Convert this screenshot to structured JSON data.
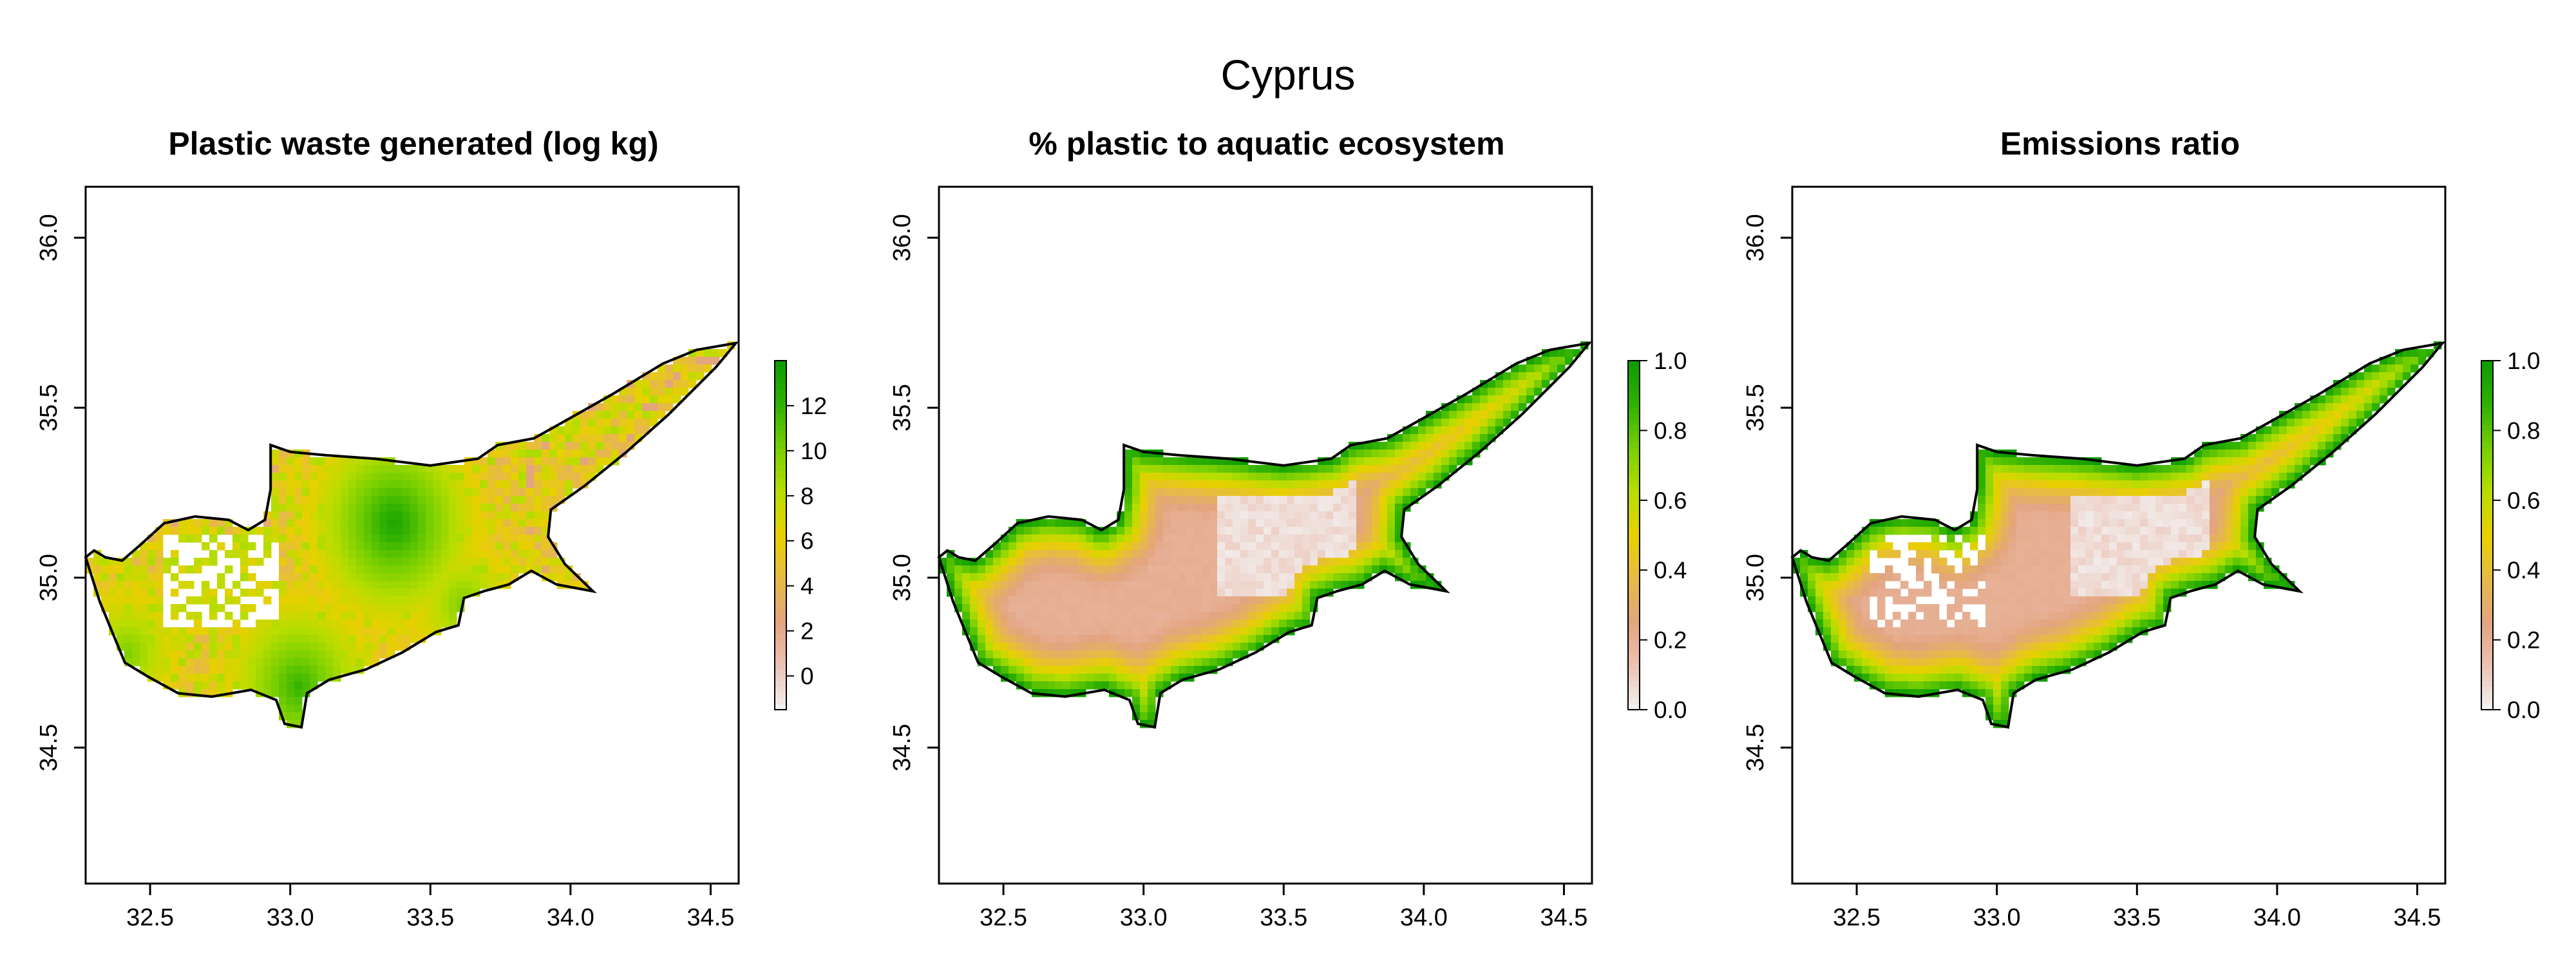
{
  "figure_title": "Cyprus",
  "colors": {
    "ramp": [
      "#f2f2f2",
      "#ecc2b4",
      "#e3a480",
      "#e6ba46",
      "#e8d000",
      "#b7dd00",
      "#77cf00",
      "#2fb100",
      "#0c9a00"
    ],
    "coastline": "#000000",
    "no_data": "#ffffff"
  },
  "chart_data": [
    {
      "type": "heatmap",
      "title": "Plastic waste generated (log kg)",
      "xlabel": "",
      "ylabel": "",
      "xlim": [
        32.27,
        34.6
      ],
      "ylim": [
        34.1,
        36.15
      ],
      "x_ticks": [
        "32.5",
        "33.0",
        "33.5",
        "34.0",
        "34.5"
      ],
      "y_ticks": [
        "34.5",
        "35.0",
        "35.5",
        "36.0"
      ],
      "legend": {
        "placement": "right",
        "min": -1.5,
        "max": 14,
        "ticks": [
          "0",
          "2",
          "4",
          "6",
          "8",
          "10",
          "12"
        ]
      },
      "pattern": "speckled",
      "typical_value": 6,
      "hotspots": [
        {
          "label": "",
          "lon": 33.37,
          "lat": 35.16,
          "value": 13
        },
        {
          "label": "",
          "lon": 33.03,
          "lat": 34.68,
          "value": 12
        },
        {
          "label": "",
          "lon": 33.62,
          "lat": 34.92,
          "value": 10
        },
        {
          "label": "",
          "lon": 32.42,
          "lat": 34.78,
          "value": 10
        }
      ],
      "no_data_region": {
        "lon": [
          32.55,
          32.95
        ],
        "lat": [
          34.85,
          35.12
        ]
      }
    },
    {
      "type": "heatmap",
      "title": "% plastic to aquatic ecosystem",
      "xlabel": "",
      "ylabel": "",
      "xlim": [
        32.27,
        34.6
      ],
      "ylim": [
        34.1,
        36.15
      ],
      "x_ticks": [
        "32.5",
        "33.0",
        "33.5",
        "34.0",
        "34.5"
      ],
      "y_ticks": [
        "34.5",
        "35.0",
        "35.5",
        "36.0"
      ],
      "legend": {
        "placement": "right",
        "min": 0,
        "max": 1,
        "ticks": [
          "0.0",
          "0.2",
          "0.4",
          "0.6",
          "0.8",
          "1.0"
        ]
      },
      "pattern": "coastal-gradient",
      "coast_value": 1.0,
      "interior_value": 0.2,
      "basin_low_region": {
        "lon": [
          33.25,
          33.75
        ],
        "lat": [
          34.95,
          35.3
        ],
        "value": 0.03
      }
    },
    {
      "type": "heatmap",
      "title": "Emissions ratio",
      "xlabel": "",
      "ylabel": "",
      "xlim": [
        32.27,
        34.6
      ],
      "ylim": [
        34.1,
        36.15
      ],
      "x_ticks": [
        "32.5",
        "33.0",
        "33.5",
        "34.0",
        "34.5"
      ],
      "y_ticks": [
        "34.5",
        "35.0",
        "35.5",
        "36.0"
      ],
      "legend": {
        "placement": "right",
        "min": 0,
        "max": 1,
        "ticks": [
          "0.0",
          "0.2",
          "0.4",
          "0.6",
          "0.8",
          "1.0"
        ]
      },
      "pattern": "coastal-gradient",
      "coast_value": 1.0,
      "interior_value": 0.2,
      "basin_low_region": {
        "lon": [
          33.25,
          33.75
        ],
        "lat": [
          34.95,
          35.3
        ],
        "value": 0.03
      },
      "no_data_region": {
        "lon": [
          32.55,
          32.95
        ],
        "lat": [
          34.85,
          35.12
        ]
      }
    }
  ],
  "island_outline": [
    [
      32.27,
      35.06
    ],
    [
      32.3,
      35.08
    ],
    [
      32.34,
      35.06
    ],
    [
      32.4,
      35.05
    ],
    [
      32.47,
      35.1
    ],
    [
      32.55,
      35.16
    ],
    [
      32.66,
      35.18
    ],
    [
      32.78,
      35.17
    ],
    [
      32.85,
      35.14
    ],
    [
      32.91,
      35.17
    ],
    [
      32.93,
      35.26
    ],
    [
      32.93,
      35.39
    ],
    [
      33.0,
      35.37
    ],
    [
      33.13,
      35.36
    ],
    [
      33.3,
      35.35
    ],
    [
      33.5,
      35.33
    ],
    [
      33.67,
      35.35
    ],
    [
      33.74,
      35.39
    ],
    [
      33.87,
      35.41
    ],
    [
      34.0,
      35.47
    ],
    [
      34.15,
      35.54
    ],
    [
      34.33,
      35.63
    ],
    [
      34.45,
      35.67
    ],
    [
      34.59,
      35.69
    ],
    [
      34.52,
      35.62
    ],
    [
      34.35,
      35.48
    ],
    [
      34.2,
      35.37
    ],
    [
      34.05,
      35.27
    ],
    [
      33.93,
      35.2
    ],
    [
      33.92,
      35.12
    ],
    [
      33.98,
      35.04
    ],
    [
      34.08,
      34.96
    ],
    [
      33.95,
      34.98
    ],
    [
      33.86,
      35.02
    ],
    [
      33.78,
      34.98
    ],
    [
      33.69,
      34.96
    ],
    [
      33.62,
      34.94
    ],
    [
      33.6,
      34.86
    ],
    [
      33.52,
      34.84
    ],
    [
      33.4,
      34.78
    ],
    [
      33.27,
      34.73
    ],
    [
      33.14,
      34.7
    ],
    [
      33.06,
      34.66
    ],
    [
      33.04,
      34.56
    ],
    [
      32.98,
      34.57
    ],
    [
      32.95,
      34.64
    ],
    [
      32.86,
      34.67
    ],
    [
      32.72,
      34.65
    ],
    [
      32.6,
      34.66
    ],
    [
      32.49,
      34.71
    ],
    [
      32.41,
      34.75
    ],
    [
      32.37,
      34.83
    ],
    [
      32.32,
      34.93
    ]
  ]
}
